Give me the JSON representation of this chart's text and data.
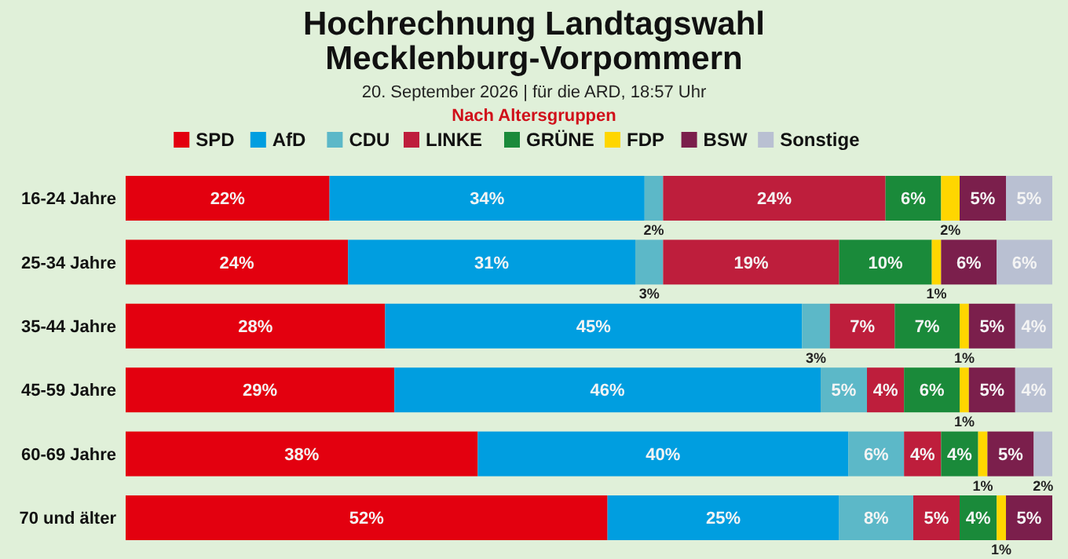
{
  "chart_data": {
    "type": "bar",
    "orientation": "horizontal",
    "stacked": true,
    "title": "Hochrechnung Landtagswahl\nMecklenburg-Vorpommern",
    "subtitle": "20. September 2026 | für die ARD, 18:57 Uhr",
    "annotations": [
      "Nach Altersgruppen"
    ],
    "categories": [
      "16-24 Jahre",
      "25-34 Jahre",
      "35-44 Jahre",
      "45-59 Jahre",
      "60-69 Jahre",
      "70 und älter"
    ],
    "xlim": [
      0,
      100
    ],
    "legend": "top",
    "series": [
      {
        "name": "SPD",
        "color": "#e3000f",
        "values": [
          22,
          24,
          28,
          29,
          38,
          52
        ],
        "value_labels": [
          "22%",
          "24%",
          "28%",
          "29%",
          "38%",
          "52%"
        ]
      },
      {
        "name": "AfD",
        "color": "#009ee0",
        "values": [
          34,
          31,
          45,
          46,
          40,
          25
        ],
        "value_labels": [
          "34%",
          "31%",
          "45%",
          "46%",
          "40%",
          "25%"
        ]
      },
      {
        "name": "CDU",
        "color": "#5cb8c8",
        "values": [
          2,
          3,
          3,
          5,
          6,
          8
        ],
        "value_labels": [
          "2%",
          "3%",
          "3%",
          "5%",
          "6%",
          "8%"
        ]
      },
      {
        "name": "LINKE",
        "color": "#be1e3c",
        "values": [
          24,
          19,
          7,
          4,
          4,
          5
        ],
        "value_labels": [
          "24%",
          "19%",
          "7%",
          "4%",
          "4%",
          "5%"
        ]
      },
      {
        "name": "GRÜNE",
        "color": "#1a8a3a",
        "values": [
          6,
          10,
          7,
          6,
          4,
          4
        ],
        "value_labels": [
          "6%",
          "10%",
          "7%",
          "6%",
          "4%",
          "4%"
        ]
      },
      {
        "name": "FDP",
        "color": "#ffd600",
        "values": [
          2,
          1,
          1,
          1,
          1,
          1
        ],
        "value_labels": [
          "2%",
          "1%",
          "1%",
          "1%",
          "1%",
          "1%"
        ]
      },
      {
        "name": "BSW",
        "color": "#7b1f4c",
        "values": [
          5,
          6,
          5,
          5,
          5,
          5
        ],
        "value_labels": [
          "5%",
          "6%",
          "5%",
          "5%",
          "5%",
          "5%"
        ]
      },
      {
        "name": "Sonstige",
        "color": "#b9c0d2",
        "values": [
          5,
          6,
          4,
          4,
          2,
          null
        ],
        "value_labels": [
          "5%",
          "6%",
          "4%",
          "4%",
          "2%",
          null
        ]
      }
    ]
  }
}
